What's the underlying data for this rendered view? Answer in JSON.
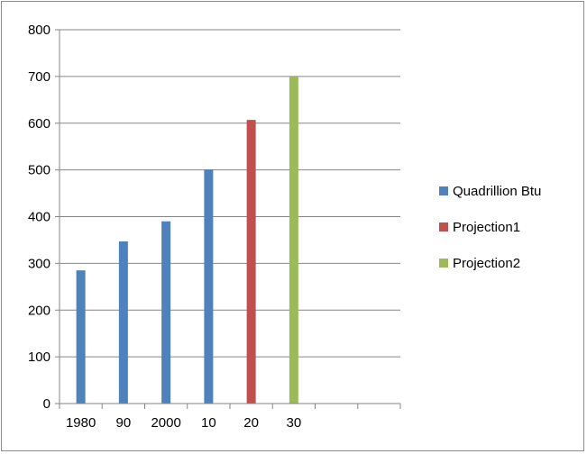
{
  "chart_data": {
    "type": "bar",
    "categories": [
      "1980",
      "90",
      "2000",
      "10",
      "20",
      "30",
      "",
      ""
    ],
    "series": [
      {
        "name": "Quadrillion Btu",
        "color": "#4f81bd",
        "values": [
          285,
          347,
          390,
          501,
          null,
          null,
          null,
          null
        ]
      },
      {
        "name": "Projection1",
        "color": "#c0504d",
        "values": [
          null,
          null,
          null,
          null,
          607,
          null,
          null,
          null
        ]
      },
      {
        "name": "Projection2",
        "color": "#9bbb59",
        "values": [
          null,
          null,
          null,
          null,
          null,
          700,
          null,
          null
        ]
      }
    ],
    "ylim": [
      0,
      800
    ],
    "yticks": [
      0,
      100,
      200,
      300,
      400,
      500,
      600,
      700,
      800
    ],
    "grid": true,
    "legend_position": "right"
  }
}
